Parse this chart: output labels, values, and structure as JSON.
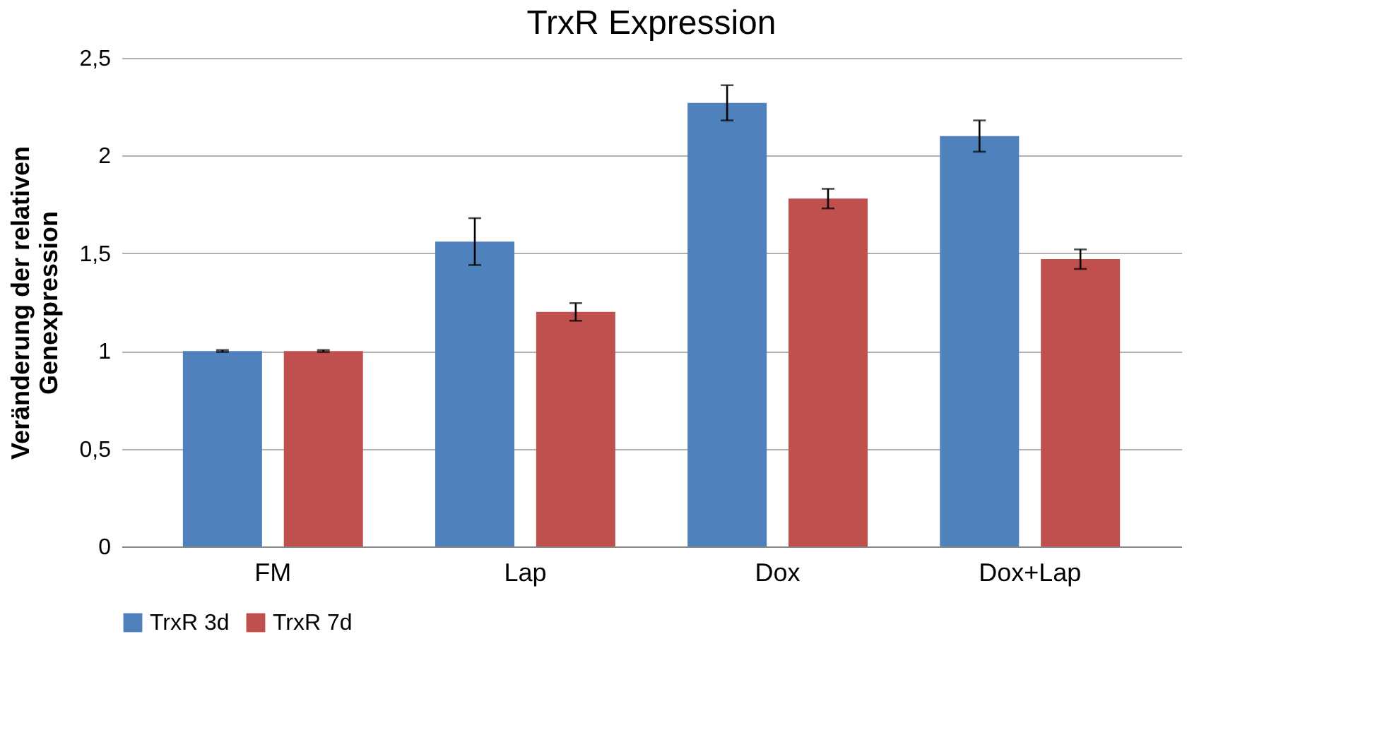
{
  "chart_data": {
    "type": "bar",
    "title": "TrxR Expression",
    "ylabel": "Veränderung der relativen\nGenexpression",
    "categories": [
      "FM",
      "Lap",
      "Dox",
      "Dox+Lap"
    ],
    "series": [
      {
        "name": "TrxR 3d",
        "color": "#4f81bd",
        "values": [
          1,
          1.56,
          2.27,
          2.1
        ],
        "errors": [
          0.005,
          0.12,
          0.09,
          0.08
        ]
      },
      {
        "name": "TrxR 7d",
        "color": "#c0504d",
        "values": [
          1,
          1.2,
          1.78,
          1.47
        ],
        "errors": [
          0.005,
          0.045,
          0.05,
          0.05
        ]
      }
    ],
    "ylim": [
      0,
      2.5
    ],
    "yticks": [
      0,
      {
        "value": 0.5,
        "label": "0,5"
      },
      1,
      {
        "value": 1.5,
        "label": "1,5"
      },
      2,
      {
        "value": 2.5,
        "label": "2,5"
      }
    ],
    "grid": "y",
    "legend": "bottom"
  }
}
